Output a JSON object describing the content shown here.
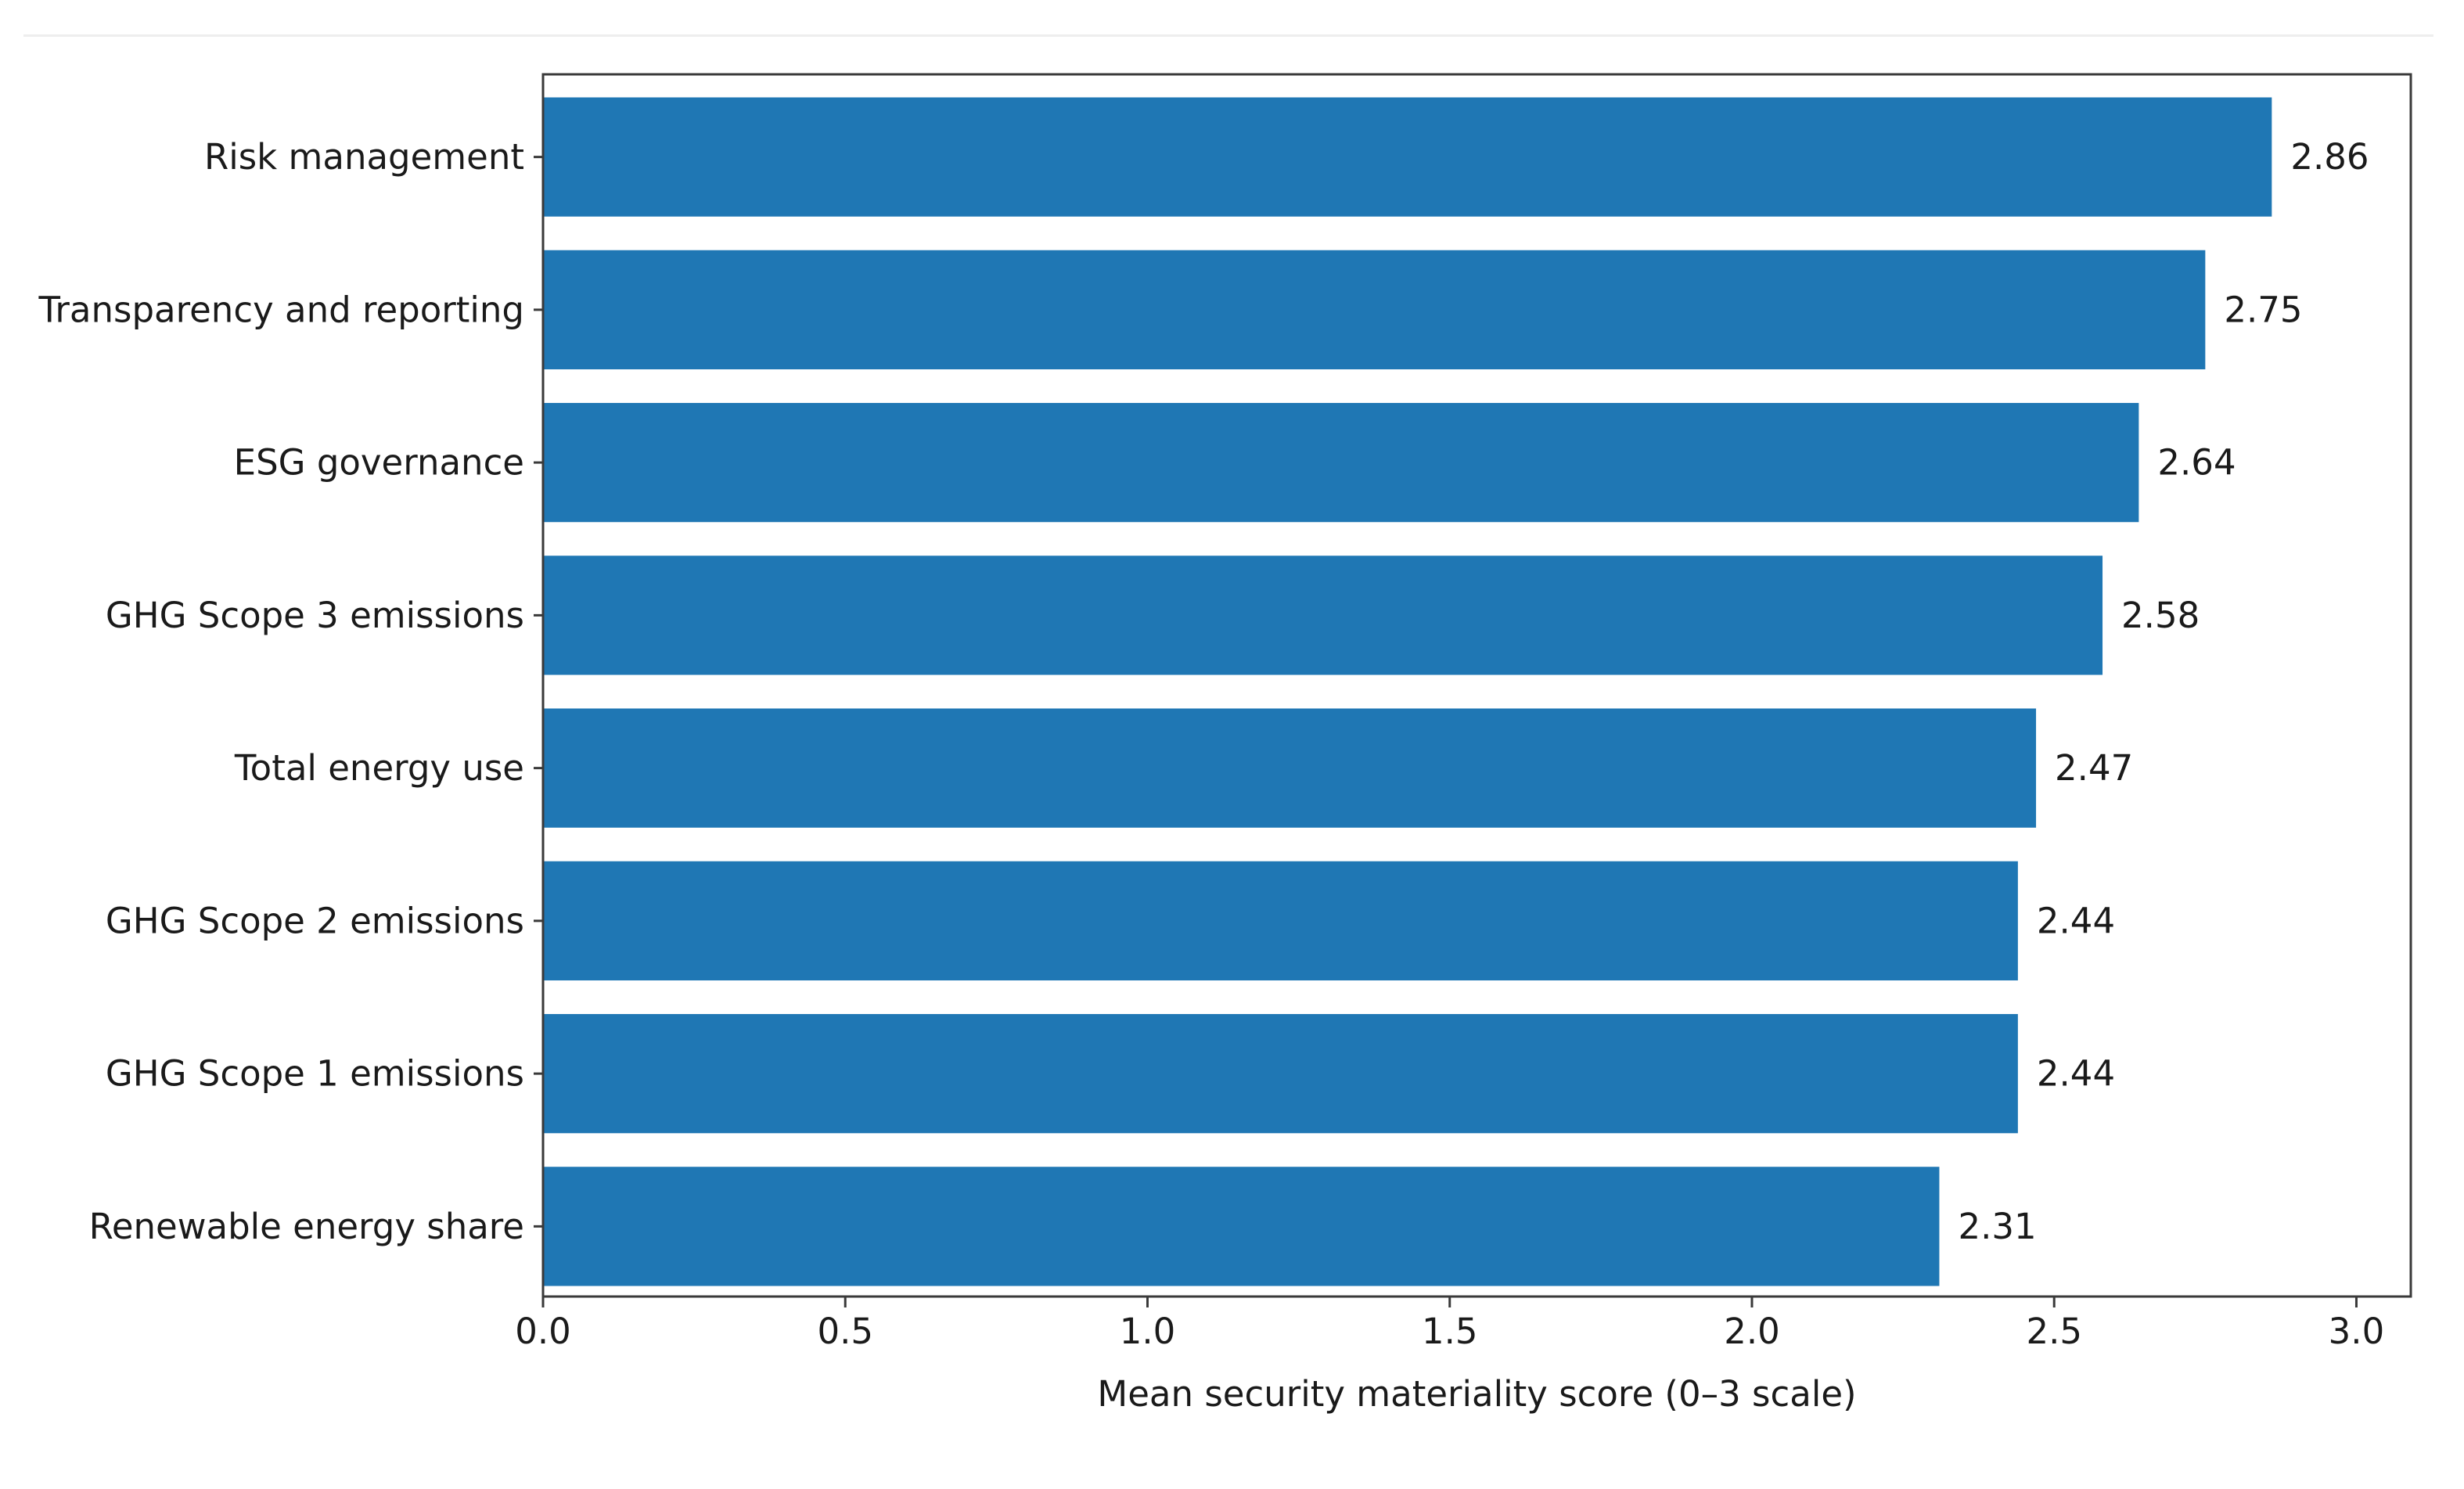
{
  "chart_data": {
    "type": "bar",
    "orientation": "horizontal",
    "categories": [
      "Risk management",
      "Transparency and reporting",
      "ESG governance",
      "GHG Scope 3 emissions",
      "Total energy use",
      "GHG Scope 2 emissions",
      "GHG Scope 1 emissions",
      "Renewable energy share"
    ],
    "values": [
      2.86,
      2.75,
      2.64,
      2.58,
      2.47,
      2.44,
      2.44,
      2.31
    ],
    "value_labels": [
      "2.86",
      "2.75",
      "2.64",
      "2.58",
      "2.47",
      "2.44",
      "2.44",
      "2.31"
    ],
    "xlabel": "Mean security materiality score (0–3 scale)",
    "ylabel": "",
    "title": "",
    "xlim": [
      0,
      3.09
    ],
    "xticks": [
      0,
      0.5,
      1,
      1.5,
      2,
      2.5,
      3
    ],
    "xtick_labels": [
      "0.0",
      "0.5",
      "1.0",
      "1.5",
      "2.0",
      "2.5",
      "3.0"
    ],
    "grid": false,
    "bar_color": "#1f77b4"
  }
}
